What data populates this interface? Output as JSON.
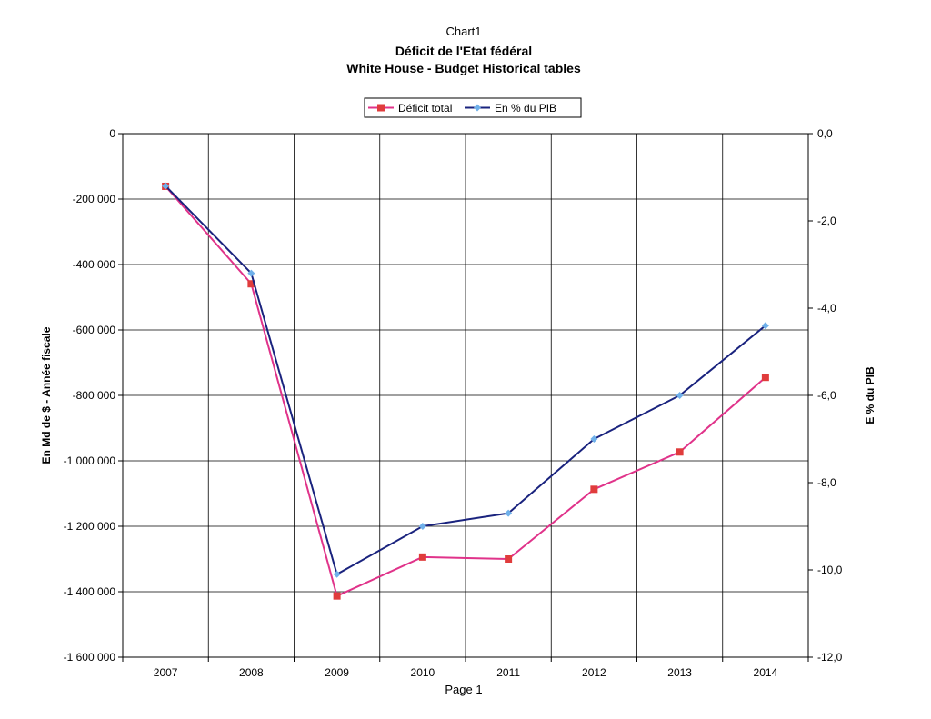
{
  "page": {
    "header": "Chart1",
    "footer": "Page 1"
  },
  "chart_data": {
    "type": "line",
    "title": "Déficit de l'Etat fédéral",
    "subtitle": "White House - Budget Historical tables",
    "x": [
      "2007",
      "2008",
      "2009",
      "2010",
      "2011",
      "2012",
      "2013",
      "2014"
    ],
    "ylabel_left": "En Md de $ - Année fiscale",
    "ylabel_right": "E % du PIB",
    "ylim_left": [
      -1600000,
      0
    ],
    "ylim_right": [
      -12.0,
      0.0
    ],
    "yticks_left": [
      "0",
      "-200 000",
      "-400 000",
      "-600 000",
      "-800 000",
      "-1 000 000",
      "-1 200 000",
      "-1 400 000",
      "-1 600 000"
    ],
    "yticks_right": [
      "0,0",
      "-2,0",
      "-4,0",
      "-6,0",
      "-8,0",
      "-10,0",
      "-12,0"
    ],
    "grid": true,
    "legend_position": "top-center",
    "series": [
      {
        "name": "Déficit total",
        "axis": "left",
        "color": "#e0338a",
        "marker_color": "#e03c3c",
        "marker": "square",
        "values": [
          -161000,
          -459000,
          -1413000,
          -1294000,
          -1300000,
          -1087000,
          -973000,
          -745000
        ]
      },
      {
        "name": "En % du PIB",
        "axis": "right",
        "color": "#1a237e",
        "marker_color": "#6fb0ea",
        "marker": "diamond",
        "values": [
          -1.2,
          -3.2,
          -10.1,
          -9.0,
          -8.7,
          -7.0,
          -6.0,
          -4.4
        ]
      }
    ]
  }
}
